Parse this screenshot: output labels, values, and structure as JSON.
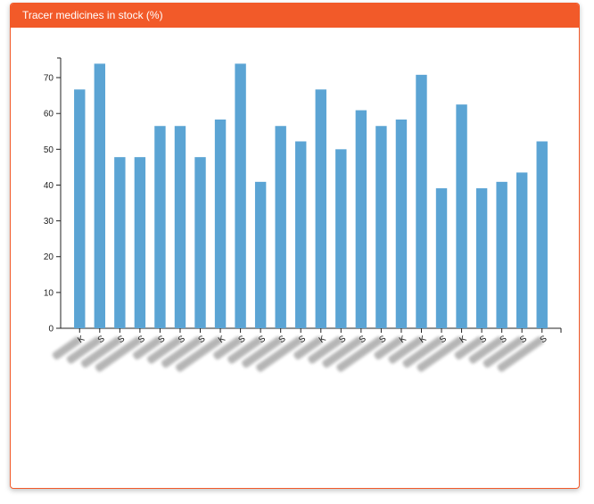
{
  "panel": {
    "title": "Tracer medicines in stock (%)"
  },
  "colors": {
    "header": "#f25a29",
    "bar": "#5ba4d4",
    "axis": "#222222"
  },
  "chart_data": {
    "type": "bar",
    "title": "",
    "xlabel": "",
    "ylabel": "",
    "ylim": [
      0,
      74
    ],
    "yticks": [
      0,
      10,
      20,
      30,
      40,
      50,
      60,
      70
    ],
    "grid": false,
    "categories": [
      "K",
      "S",
      "S",
      "S",
      "S",
      "S",
      "S",
      "K",
      "S",
      "S",
      "S",
      "S",
      "K",
      "S",
      "S",
      "S",
      "K",
      "K",
      "S",
      "K",
      "S",
      "S",
      "S",
      "S"
    ],
    "values": [
      66.7,
      73.9,
      47.8,
      47.8,
      56.5,
      56.5,
      47.8,
      58.3,
      73.9,
      40.9,
      56.5,
      52.2,
      66.7,
      50.0,
      60.9,
      56.5,
      58.3,
      70.8,
      39.1,
      62.5,
      39.1,
      40.9,
      43.5,
      52.2
    ]
  }
}
